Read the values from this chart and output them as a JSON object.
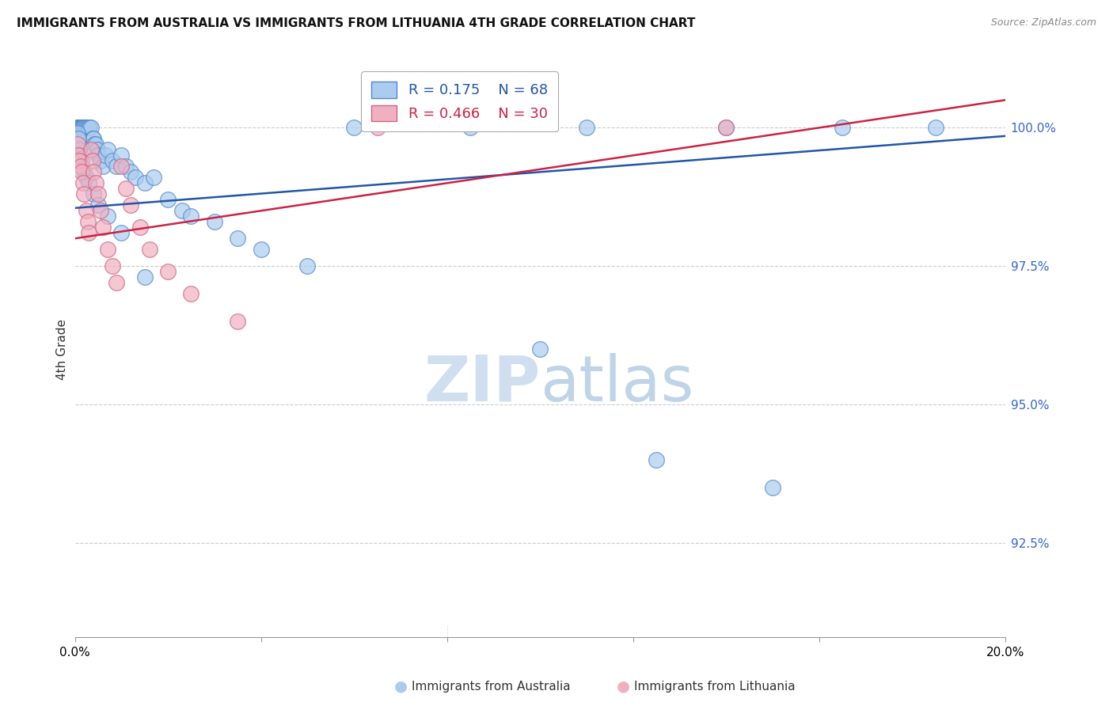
{
  "title": "IMMIGRANTS FROM AUSTRALIA VS IMMIGRANTS FROM LITHUANIA 4TH GRADE CORRELATION CHART",
  "source": "Source: ZipAtlas.com",
  "ylabel": "4th Grade",
  "ytick_values": [
    92.5,
    95.0,
    97.5,
    100.0
  ],
  "xlim": [
    0.0,
    20.0
  ],
  "ylim": [
    90.8,
    101.2
  ],
  "legend_blue_label": "Immigrants from Australia",
  "legend_pink_label": "Immigrants from Lithuania",
  "r_blue": 0.175,
  "n_blue": 68,
  "r_pink": 0.466,
  "n_pink": 30,
  "blue_face_color": "#aaccee",
  "pink_face_color": "#f0b0c0",
  "blue_edge_color": "#5588cc",
  "pink_edge_color": "#cc6688",
  "blue_line_color": "#2255aa",
  "pink_line_color": "#cc2244",
  "grid_color": "#cccccc",
  "watermark_zip_color": "#d0dff0",
  "watermark_atlas_color": "#c0d4e8",
  "blue_x": [
    0.05,
    0.07,
    0.08,
    0.09,
    0.1,
    0.11,
    0.12,
    0.13,
    0.14,
    0.15,
    0.16,
    0.17,
    0.18,
    0.2,
    0.22,
    0.25,
    0.28,
    0.3,
    0.32,
    0.35,
    0.38,
    0.4,
    0.42,
    0.45,
    0.48,
    0.5,
    0.55,
    0.6,
    0.65,
    0.7,
    0.8,
    0.9,
    1.0,
    1.1,
    1.2,
    1.3,
    1.5,
    1.7,
    2.0,
    2.3,
    2.5,
    3.0,
    3.5,
    4.0,
    5.0,
    0.06,
    0.08,
    0.1,
    0.12,
    0.15,
    0.2,
    0.25,
    0.3,
    0.4,
    0.5,
    0.7,
    1.0,
    1.5,
    6.0,
    8.5,
    11.0,
    14.0,
    16.5,
    18.5,
    10.0,
    12.5,
    15.0,
    0.05
  ],
  "blue_y": [
    100.0,
    100.0,
    100.0,
    100.0,
    100.0,
    100.0,
    100.0,
    100.0,
    100.0,
    100.0,
    100.0,
    100.0,
    100.0,
    100.0,
    100.0,
    100.0,
    100.0,
    100.0,
    100.0,
    100.0,
    99.8,
    99.8,
    99.7,
    99.7,
    99.6,
    99.5,
    99.4,
    99.3,
    99.5,
    99.6,
    99.4,
    99.3,
    99.5,
    99.3,
    99.2,
    99.1,
    99.0,
    99.1,
    98.7,
    98.5,
    98.4,
    98.3,
    98.0,
    97.8,
    97.5,
    99.9,
    99.8,
    99.6,
    99.5,
    99.4,
    99.2,
    99.1,
    99.0,
    98.8,
    98.6,
    98.4,
    98.1,
    97.3,
    100.0,
    100.0,
    100.0,
    100.0,
    100.0,
    100.0,
    96.0,
    94.0,
    93.5,
    99.5
  ],
  "pink_x": [
    0.05,
    0.08,
    0.1,
    0.12,
    0.15,
    0.18,
    0.2,
    0.25,
    0.28,
    0.3,
    0.35,
    0.38,
    0.4,
    0.45,
    0.5,
    0.55,
    0.6,
    0.7,
    0.8,
    0.9,
    1.0,
    1.1,
    1.2,
    1.4,
    1.6,
    2.0,
    2.5,
    3.5,
    6.5,
    14.0
  ],
  "pink_y": [
    99.7,
    99.5,
    99.4,
    99.3,
    99.2,
    99.0,
    98.8,
    98.5,
    98.3,
    98.1,
    99.6,
    99.4,
    99.2,
    99.0,
    98.8,
    98.5,
    98.2,
    97.8,
    97.5,
    97.2,
    99.3,
    98.9,
    98.6,
    98.2,
    97.8,
    97.4,
    97.0,
    96.5,
    100.0,
    100.0
  ],
  "blue_line_x": [
    0.0,
    20.0
  ],
  "blue_line_y": [
    98.55,
    99.85
  ],
  "pink_line_x": [
    0.0,
    20.0
  ],
  "pink_line_y": [
    98.0,
    100.5
  ]
}
